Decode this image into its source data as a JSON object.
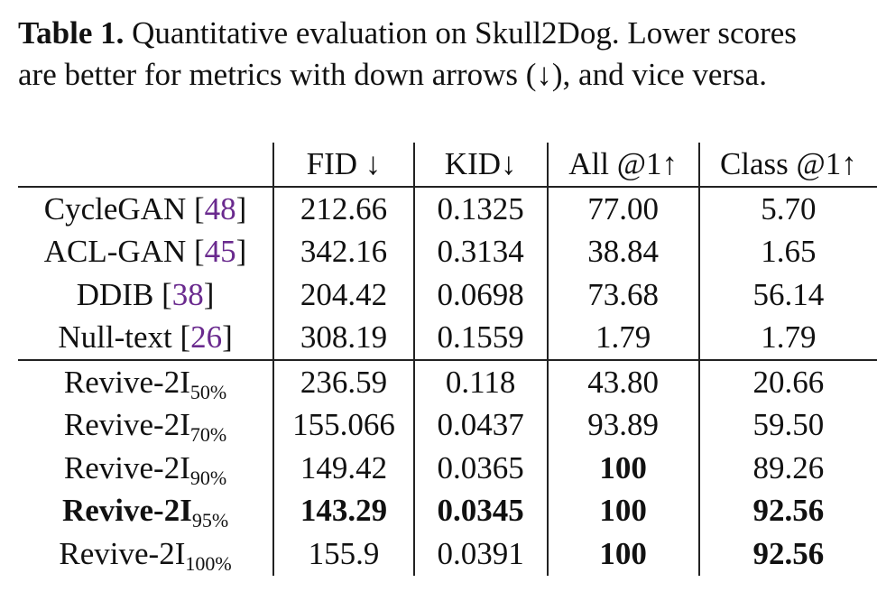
{
  "caption": {
    "label": "Table 1.",
    "line1": " Quantitative evaluation on Skull2Dog. Lower scores",
    "line2": "are better for metrics with down arrows (↓), and vice versa."
  },
  "table": {
    "headers": [
      "",
      "FID ↓",
      "KID↓",
      "All @1↑",
      "Class @1↑"
    ],
    "baselines": [
      {
        "method": "CycleGAN ",
        "ref": "48",
        "fid": "212.66",
        "kid": "0.1325",
        "all": "77.00",
        "cls": "5.70"
      },
      {
        "method": "ACL-GAN ",
        "ref": "45",
        "fid": "342.16",
        "kid": "0.3134",
        "all": "38.84",
        "cls": "1.65"
      },
      {
        "method": "DDIB ",
        "ref": "38",
        "fid": "204.42",
        "kid": "0.0698",
        "all": "73.68",
        "cls": "56.14"
      },
      {
        "method": "Null-text ",
        "ref": "26",
        "fid": "308.19",
        "kid": "0.1559",
        "all": "1.79",
        "cls": "1.79"
      }
    ],
    "ours": [
      {
        "method": "Revive-2I",
        "sub": "50%",
        "fid": "236.59",
        "kid": "0.118",
        "all": "43.80",
        "cls": "20.66"
      },
      {
        "method": "Revive-2I",
        "sub": "70%",
        "fid": "155.066",
        "kid": "0.0437",
        "all": "93.89",
        "cls": "59.50"
      },
      {
        "method": "Revive-2I",
        "sub": "90%",
        "fid": "149.42",
        "kid": "0.0365",
        "all": "100",
        "cls": "89.26"
      },
      {
        "method": "Revive-2I",
        "sub": "95%",
        "fid": "143.29",
        "kid": "0.0345",
        "all": "100",
        "cls": "92.56"
      },
      {
        "method": "Revive-2I",
        "sub": "100%",
        "fid": "155.9",
        "kid": "0.0391",
        "all": "100",
        "cls": "92.56"
      }
    ]
  }
}
